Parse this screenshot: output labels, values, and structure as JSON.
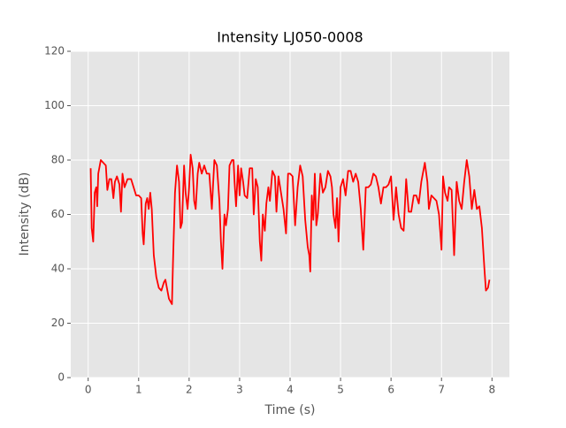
{
  "chart_data": {
    "type": "line",
    "title": "Intensity LJ050-0008",
    "xlabel": "Time (s)",
    "ylabel": "Intensity (dB)",
    "color": "#ff0000",
    "grid": true,
    "xlim": [
      -0.345,
      8.345
    ],
    "ylim": [
      0,
      120
    ],
    "xticks": [
      0,
      1,
      2,
      3,
      4,
      5,
      6,
      7,
      8
    ],
    "yticks": [
      0,
      20,
      40,
      60,
      80,
      100,
      120
    ],
    "x": [
      0.05,
      0.07,
      0.1,
      0.13,
      0.16,
      0.18,
      0.2,
      0.25,
      0.3,
      0.35,
      0.38,
      0.42,
      0.46,
      0.5,
      0.53,
      0.57,
      0.62,
      0.65,
      0.68,
      0.72,
      0.78,
      0.85,
      0.9,
      0.95,
      1.0,
      1.05,
      1.08,
      1.1,
      1.14,
      1.17,
      1.2,
      1.23,
      1.26,
      1.3,
      1.35,
      1.4,
      1.45,
      1.5,
      1.53,
      1.56,
      1.6,
      1.63,
      1.66,
      1.68,
      1.72,
      1.76,
      1.8,
      1.83,
      1.86,
      1.9,
      1.93,
      1.97,
      2.0,
      2.03,
      2.07,
      2.1,
      2.13,
      2.17,
      2.2,
      2.25,
      2.3,
      2.35,
      2.4,
      2.45,
      2.5,
      2.55,
      2.6,
      2.63,
      2.66,
      2.7,
      2.73,
      2.77,
      2.8,
      2.85,
      2.88,
      2.9,
      2.93,
      2.97,
      3.0,
      3.03,
      3.07,
      3.1,
      3.15,
      3.2,
      3.25,
      3.28,
      3.32,
      3.36,
      3.4,
      3.43,
      3.46,
      3.5,
      3.53,
      3.57,
      3.6,
      3.65,
      3.7,
      3.73,
      3.77,
      3.82,
      3.87,
      3.92,
      3.96,
      4.0,
      4.05,
      4.1,
      4.15,
      4.2,
      4.25,
      4.3,
      4.35,
      4.38,
      4.4,
      4.43,
      4.46,
      4.49,
      4.52,
      4.55,
      4.6,
      4.65,
      4.7,
      4.75,
      4.8,
      4.83,
      4.86,
      4.9,
      4.93,
      4.96,
      5.0,
      5.05,
      5.1,
      5.15,
      5.2,
      5.25,
      5.3,
      5.35,
      5.4,
      5.45,
      5.5,
      5.55,
      5.6,
      5.65,
      5.7,
      5.75,
      5.8,
      5.85,
      5.9,
      5.95,
      6.0,
      6.05,
      6.1,
      6.15,
      6.2,
      6.25,
      6.3,
      6.35,
      6.4,
      6.45,
      6.5,
      6.55,
      6.6,
      6.67,
      6.72,
      6.75,
      6.8,
      6.85,
      6.9,
      6.95,
      7.0,
      7.03,
      7.07,
      7.12,
      7.15,
      7.2,
      7.25,
      7.3,
      7.35,
      7.4,
      7.45,
      7.5,
      7.55,
      7.6,
      7.65,
      7.7,
      7.75,
      7.8,
      7.85,
      7.88,
      7.92,
      7.95
    ],
    "values": [
      77,
      55,
      50,
      68,
      70,
      63,
      75,
      80,
      79,
      78,
      69,
      73,
      73,
      66,
      72,
      74,
      71,
      61,
      75,
      70,
      73,
      73,
      70,
      67,
      67,
      66,
      53,
      49,
      64,
      66,
      62,
      68,
      62,
      45,
      37,
      33,
      32,
      35,
      36,
      33,
      29,
      28,
      27,
      42,
      68,
      78,
      72,
      55,
      57,
      78,
      68,
      62,
      70,
      82,
      77,
      65,
      62,
      75,
      79,
      75,
      78,
      75,
      75,
      62,
      80,
      78,
      65,
      50,
      40,
      60,
      56,
      62,
      78,
      80,
      80,
      72,
      63,
      78,
      67,
      77,
      72,
      67,
      66,
      77,
      77,
      60,
      73,
      70,
      50,
      43,
      60,
      54,
      64,
      70,
      65,
      76,
      74,
      61,
      74,
      68,
      62,
      53,
      75,
      75,
      74,
      56,
      70,
      78,
      74,
      58,
      48,
      45,
      39,
      67,
      58,
      75,
      56,
      60,
      75,
      68,
      70,
      76,
      74,
      70,
      60,
      55,
      66,
      50,
      70,
      73,
      67,
      76,
      76,
      72,
      75,
      72,
      62,
      47,
      70,
      70,
      71,
      75,
      74,
      70,
      64,
      70,
      70,
      71,
      74,
      58,
      70,
      60,
      55,
      54,
      73,
      61,
      61,
      67,
      67,
      64,
      72,
      79,
      72,
      62,
      67,
      66,
      65,
      60,
      47,
      74,
      68,
      65,
      70,
      69,
      45,
      72,
      65,
      62,
      72,
      80,
      74,
      62,
      69,
      62,
      63,
      55,
      40,
      32,
      33,
      36
    ]
  }
}
